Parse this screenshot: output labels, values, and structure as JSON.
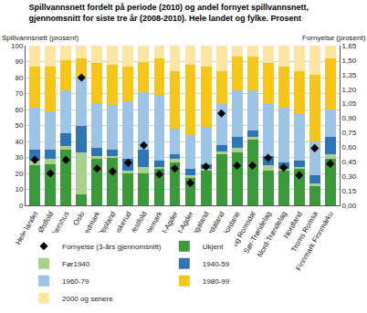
{
  "chart_data": {
    "type": "bar",
    "stacked": true,
    "grid": true,
    "legend": "bottom",
    "title": [
      "Spillvannsnett fordelt på periode (2010) og andel fornyet spillvannsnett,",
      "gjennomsnitt for siste tre år (2008-2010). Hele landet og fylke. Prosent"
    ],
    "y_label": "Spillvannsnett (prosent)",
    "y2_label": "Fornyelse (prosent)",
    "categories": [
      "Hele landet",
      "Østfold",
      "Akershus",
      "Oslo",
      "Hedmark",
      "Oppland",
      "Buskerud",
      "Vestfold",
      "Telemark",
      "Aust-Agder",
      "Vest-Agder",
      "Rogaland",
      "Hordaland",
      "Sogn og Fjordane",
      "Møre og Romsdal",
      "Sør-Trøndelag",
      "Nord-Trøndelag",
      "Nordland",
      "Troms Romsa",
      "Finnmark Finnmárku"
    ],
    "ylim": [
      0,
      100
    ],
    "yticks": [
      0,
      10,
      20,
      30,
      40,
      50,
      60,
      70,
      80,
      90,
      100
    ],
    "y2lim": [
      0,
      1.65
    ],
    "y2ticks": [
      {
        "value": 0,
        "label": "0,00"
      },
      {
        "value": 0.15,
        "label": "0,15"
      },
      {
        "value": 0.3,
        "label": "0,30"
      },
      {
        "value": 0.45,
        "label": "0,45"
      },
      {
        "value": 0.6,
        "label": "0,60"
      },
      {
        "value": 0.75,
        "label": "0,75"
      },
      {
        "value": 0.9,
        "label": "0,90"
      },
      {
        "value": 1.05,
        "label": "1,05"
      },
      {
        "value": 1.2,
        "label": "1,20"
      },
      {
        "value": 1.35,
        "label": "1,35"
      },
      {
        "value": 1.5,
        "label": "1,50"
      },
      {
        "value": 1.65,
        "label": "1,65"
      }
    ],
    "series": [
      {
        "name": "Fornyelse (3-års gjennomsnitt)",
        "type": "scatter",
        "axis": "y2",
        "marker": "diamond",
        "color": "#000000",
        "values": [
          0.47,
          0.33,
          0.47,
          1.32,
          0.38,
          0.35,
          0.44,
          0.62,
          0.32,
          0.38,
          0.23,
          0.4,
          0.95,
          0.41,
          0.41,
          0.49,
          0.39,
          0.31,
          0.59,
          0.43
        ]
      },
      {
        "name": "Ukjent",
        "color": "#3a9a3a",
        "values": [
          25,
          26,
          35,
          7,
          29,
          30,
          20,
          20,
          23,
          27,
          17,
          22,
          32,
          33,
          41,
          22,
          22,
          23,
          12,
          29
        ]
      },
      {
        "name": "Før1940",
        "color": "#a9d18e",
        "values": [
          3,
          3,
          2,
          26,
          2,
          1,
          2,
          4,
          1,
          2,
          2,
          1,
          2,
          3,
          2,
          3,
          1,
          1,
          2,
          3
        ]
      },
      {
        "name": "1940-59",
        "color": "#2e75b6",
        "values": [
          7,
          6,
          8,
          17,
          5,
          4,
          7,
          11,
          4,
          3,
          4,
          3,
          4,
          7,
          4,
          6,
          4,
          4,
          5,
          11
        ]
      },
      {
        "name": "1960-79",
        "color": "#9dc3e6",
        "values": [
          26,
          24,
          27,
          30,
          28,
          28,
          36,
          36,
          41,
          16,
          21,
          23,
          26,
          29,
          25,
          33,
          34,
          29,
          21,
          17
        ]
      },
      {
        "name": "1980-99",
        "color": "#f5c518",
        "values": [
          26,
          28,
          19,
          12,
          25,
          25,
          22,
          19,
          23,
          36,
          44,
          38,
          20,
          21,
          21,
          25,
          26,
          27,
          42,
          32
        ]
      },
      {
        "name": "2000 og senere",
        "color": "#fbe5a0",
        "values": [
          13,
          13,
          9,
          8,
          11,
          12,
          13,
          10,
          8,
          16,
          12,
          13,
          16,
          7,
          7,
          11,
          13,
          16,
          18,
          8
        ]
      }
    ]
  }
}
